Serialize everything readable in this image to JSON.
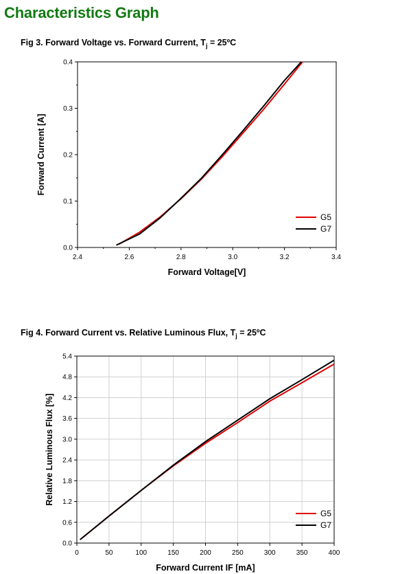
{
  "page": {
    "title": "Characteristics Graph"
  },
  "figures": [
    {
      "title_main": "Fig 3. Forward Voltage vs. Forward Current, T",
      "title_sub": "j",
      "title_end": " = 25ºC"
    },
    {
      "title_main": "Fig 4. Forward Current vs. Relative Luminous Flux, T",
      "title_sub": "j",
      "title_end": " = 25ºC"
    }
  ],
  "colors": {
    "title_green": "#117a12",
    "G5": "#e00000",
    "G7": "#000000",
    "grid": "#d0d0d0"
  },
  "chart_data": [
    {
      "type": "line",
      "title": "Fig 3. Forward Voltage vs. Forward Current, Tj = 25ºC",
      "xlabel": "Forward Voltage[V]",
      "ylabel": "Forward Current [A]",
      "xlim": [
        2.4,
        3.4
      ],
      "ylim": [
        0.0,
        0.4
      ],
      "xticks": [
        "2.4",
        "2.6",
        "2.8",
        "3.0",
        "3.2",
        "3.4"
      ],
      "yticks": [
        "0.0",
        "0.1",
        "0.2",
        "0.3",
        "0.4"
      ],
      "grid": false,
      "legend_position": "bottom-right",
      "series": [
        {
          "name": "G5",
          "color": "#e00000",
          "x": [
            2.56,
            2.64,
            2.72,
            2.8,
            2.88,
            2.96,
            3.04,
            3.12,
            3.2,
            3.27
          ],
          "y": [
            0.007,
            0.033,
            0.066,
            0.105,
            0.148,
            0.196,
            0.247,
            0.298,
            0.352,
            0.4
          ]
        },
        {
          "name": "G7",
          "color": "#000000",
          "x": [
            2.55,
            2.64,
            2.72,
            2.8,
            2.88,
            2.96,
            3.04,
            3.12,
            3.2,
            3.265
          ],
          "y": [
            0.005,
            0.029,
            0.064,
            0.106,
            0.15,
            0.2,
            0.252,
            0.305,
            0.36,
            0.4
          ]
        }
      ]
    },
    {
      "type": "line",
      "title": "Fig 4. Forward Current vs. Relative Luminous Flux, Tj = 25ºC",
      "xlabel": "Forward Current IF [mA]",
      "ylabel": "Relative Luminous Flux [%]",
      "xlim": [
        0,
        400
      ],
      "ylim": [
        0.0,
        5.4
      ],
      "xticks": [
        "0",
        "50",
        "100",
        "150",
        "200",
        "250",
        "300",
        "350",
        "400"
      ],
      "yticks": [
        "0.0",
        "0.6",
        "1.2",
        "1.8",
        "2.4",
        "3.0",
        "3.6",
        "4.2",
        "4.8",
        "5.4"
      ],
      "grid": true,
      "legend_position": "bottom-right",
      "series": [
        {
          "name": "G5",
          "color": "#e00000",
          "x": [
            5,
            50,
            100,
            150,
            200,
            250,
            300,
            350,
            400
          ],
          "y": [
            0.1,
            0.78,
            1.52,
            2.23,
            2.88,
            3.48,
            4.1,
            4.63,
            5.17
          ]
        },
        {
          "name": "G7",
          "color": "#000000",
          "x": [
            5,
            50,
            100,
            150,
            200,
            250,
            300,
            350,
            400
          ],
          "y": [
            0.1,
            0.78,
            1.52,
            2.25,
            2.93,
            3.55,
            4.17,
            4.72,
            5.28
          ]
        }
      ]
    }
  ]
}
